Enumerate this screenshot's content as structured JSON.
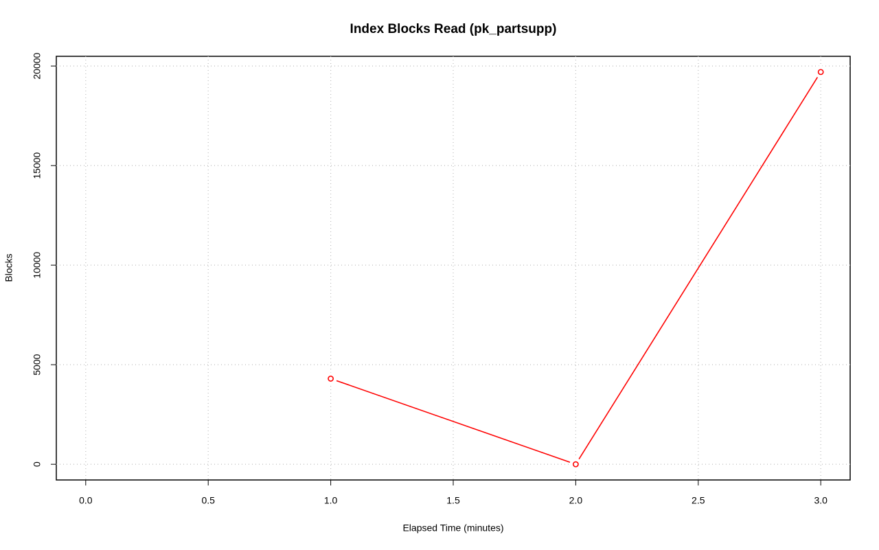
{
  "chart_data": {
    "type": "line",
    "title": "Index Blocks Read (pk_partsupp)",
    "x_label": "Elapsed Time (minutes)",
    "y_label": "Blocks",
    "x": [
      1,
      2,
      3
    ],
    "series": [
      {
        "color": "#ff0000",
        "values": [
          4300,
          0,
          19700
        ]
      }
    ],
    "xlim": [
      -0.12,
      3.12
    ],
    "xticks": [
      {
        "value": 0,
        "label": "0.0"
      },
      0.5,
      {
        "value": 1,
        "label": "1.0"
      },
      1.5,
      {
        "value": 2,
        "label": "2.0"
      },
      2.5,
      {
        "value": 3,
        "label": "3.0"
      }
    ],
    "ylim": [
      -788,
      20488
    ],
    "yticks": [
      0,
      5000,
      10000,
      15000,
      20000
    ],
    "grid": true
  }
}
